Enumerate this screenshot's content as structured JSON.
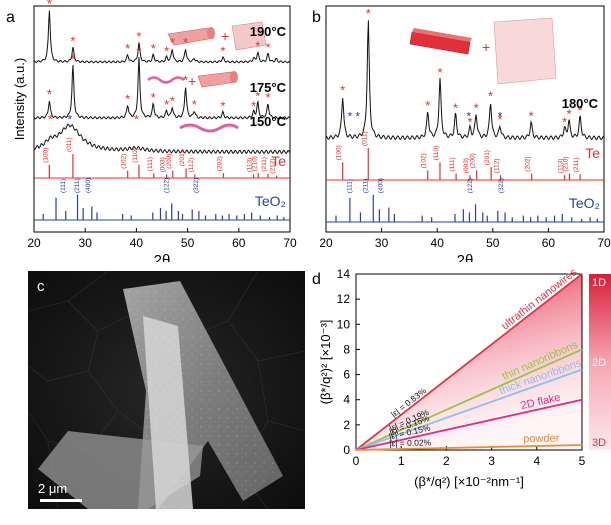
{
  "panel_labels": {
    "a": "a",
    "b": "b",
    "c": "c",
    "d": "d"
  },
  "chart_data": [
    {
      "type": "line",
      "panel": "a",
      "xlabel": "2θ",
      "ylabel": "Intensity (a.u.)",
      "xlim": [
        20,
        70
      ],
      "xticks": [
        20,
        30,
        40,
        50,
        60,
        70
      ],
      "traces": [
        {
          "name": "190°C",
          "peaks": [
            {
              "x": 23.0,
              "h": 0.9
            },
            {
              "x": 27.6,
              "h": 0.25
            },
            {
              "x": 38.3,
              "h": 0.12
            },
            {
              "x": 40.5,
              "h": 0.33
            },
            {
              "x": 43.3,
              "h": 0.12
            },
            {
              "x": 45.9,
              "h": 0.08
            },
            {
              "x": 47.0,
              "h": 0.22
            },
            {
              "x": 49.6,
              "h": 0.22
            },
            {
              "x": 51.3,
              "h": 0.06
            },
            {
              "x": 56.9,
              "h": 0.08
            },
            {
              "x": 62.9,
              "h": 0.06
            },
            {
              "x": 63.7,
              "h": 0.16
            },
            {
              "x": 65.7,
              "h": 0.14
            },
            {
              "x": 67.3,
              "h": 0.05
            }
          ]
        },
        {
          "name": "175°C",
          "peaks": [
            {
              "x": 23.0,
              "h": 0.25
            },
            {
              "x": 27.6,
              "h": 0.75
            },
            {
              "x": 38.3,
              "h": 0.18
            },
            {
              "x": 40.5,
              "h": 0.85
            },
            {
              "x": 43.3,
              "h": 0.2
            },
            {
              "x": 45.9,
              "h": 0.1
            },
            {
              "x": 47.0,
              "h": 0.15
            },
            {
              "x": 49.6,
              "h": 0.45
            },
            {
              "x": 51.3,
              "h": 0.1
            },
            {
              "x": 56.9,
              "h": 0.08
            },
            {
              "x": 62.9,
              "h": 0.08
            },
            {
              "x": 63.7,
              "h": 0.22
            },
            {
              "x": 65.7,
              "h": 0.2
            }
          ]
        },
        {
          "name": "150°C",
          "broad": [
            {
              "x": 27.0,
              "h": 0.5,
              "w": 2.6
            },
            {
              "x": 23.2,
              "h": 0.12,
              "w": 1.2
            },
            {
              "x": 40.0,
              "h": 0.06,
              "w": 2.0
            }
          ]
        }
      ],
      "references": [
        {
          "name": "Te",
          "color": "#e8302a",
          "lines": [
            {
              "x": 23.0,
              "h": 0.55,
              "hkl": "(100)"
            },
            {
              "x": 27.6,
              "h": 1.0,
              "hkl": "(011)"
            },
            {
              "x": 38.3,
              "h": 0.3,
              "hkl": "(102)"
            },
            {
              "x": 40.5,
              "h": 0.55,
              "hkl": "(110)"
            },
            {
              "x": 43.4,
              "h": 0.2,
              "hkl": "(111)"
            },
            {
              "x": 45.9,
              "h": 0.15,
              "hkl": "(003)"
            },
            {
              "x": 47.1,
              "h": 0.3,
              "hkl": "(200)"
            },
            {
              "x": 49.7,
              "h": 0.4,
              "hkl": "(201)"
            },
            {
              "x": 51.4,
              "h": 0.15,
              "hkl": "(112)"
            },
            {
              "x": 57.0,
              "h": 0.2,
              "hkl": "(202)"
            },
            {
              "x": 62.9,
              "h": 0.15,
              "hkl": "(113)"
            },
            {
              "x": 63.8,
              "h": 0.2,
              "hkl": "(210)"
            },
            {
              "x": 65.7,
              "h": 0.18,
              "hkl": "(211)"
            },
            {
              "x": 67.4,
              "h": 0.1,
              "hkl": "(212)"
            }
          ]
        },
        {
          "name": "TeO₂",
          "color": "#2a3fa0",
          "lines": [
            {
              "x": 21.8,
              "h": 0.2
            },
            {
              "x": 24.3,
              "h": 0.75
            },
            {
              "x": 26.2,
              "h": 0.3
            },
            {
              "x": 28.5,
              "h": 0.85
            },
            {
              "x": 29.6,
              "h": 0.4
            },
            {
              "x": 31.3,
              "h": 0.45
            },
            {
              "x": 32.3,
              "h": 0.25
            },
            {
              "x": 37.3,
              "h": 0.2
            },
            {
              "x": 39.0,
              "h": 0.15
            },
            {
              "x": 43.2,
              "h": 0.25
            },
            {
              "x": 44.7,
              "h": 0.4
            },
            {
              "x": 45.8,
              "h": 0.3
            },
            {
              "x": 46.9,
              "h": 0.55
            },
            {
              "x": 48.2,
              "h": 0.3
            },
            {
              "x": 49.0,
              "h": 0.2
            },
            {
              "x": 50.9,
              "h": 0.35
            },
            {
              "x": 52.2,
              "h": 0.3
            },
            {
              "x": 53.5,
              "h": 0.15
            },
            {
              "x": 55.5,
              "h": 0.2
            },
            {
              "x": 56.8,
              "h": 0.15
            },
            {
              "x": 58.1,
              "h": 0.2
            },
            {
              "x": 59.6,
              "h": 0.15
            },
            {
              "x": 61.1,
              "h": 0.2
            },
            {
              "x": 62.5,
              "h": 0.25
            },
            {
              "x": 64.2,
              "h": 0.15
            },
            {
              "x": 66.0,
              "h": 0.1
            },
            {
              "x": 67.5,
              "h": 0.15
            },
            {
              "x": 68.8,
              "h": 0.1
            }
          ],
          "labels": [
            {
              "x": 26.1,
              "text": "(111)"
            },
            {
              "x": 28.8,
              "text": "(211)"
            },
            {
              "x": 30.9,
              "text": "(400)"
            },
            {
              "x": 46.3,
              "text": "(122)"
            },
            {
              "x": 52.0,
              "text": "(322)"
            }
          ]
        }
      ]
    },
    {
      "type": "line",
      "panel": "b",
      "xlabel": "2θ",
      "xlim": [
        20,
        70
      ],
      "xticks": [
        20,
        30,
        40,
        50,
        60,
        70
      ],
      "traces": [
        {
          "name": "180°C",
          "peaks": [
            {
              "x": 23.0,
              "h": 0.35
            },
            {
              "x": 27.6,
              "h": 1.0
            },
            {
              "x": 38.3,
              "h": 0.22
            },
            {
              "x": 40.5,
              "h": 0.5
            },
            {
              "x": 43.3,
              "h": 0.2
            },
            {
              "x": 45.9,
              "h": 0.08
            },
            {
              "x": 47.0,
              "h": 0.2
            },
            {
              "x": 49.6,
              "h": 0.3
            },
            {
              "x": 51.3,
              "h": 0.1
            },
            {
              "x": 56.9,
              "h": 0.13
            },
            {
              "x": 62.9,
              "h": 0.08
            },
            {
              "x": 63.7,
              "h": 0.15
            },
            {
              "x": 65.7,
              "h": 0.18
            }
          ],
          "blue_marks": [
            24.3,
            25.7,
            45.7,
            51.3
          ]
        }
      ],
      "references": [
        {
          "name": "Te",
          "color": "#e8302a",
          "lines": [
            {
              "x": 23.0,
              "h": 0.55,
              "hkl": "(100)"
            },
            {
              "x": 27.6,
              "h": 1.0,
              "hkl": "(011)"
            },
            {
              "x": 38.3,
              "h": 0.3,
              "hkl": "(102)"
            },
            {
              "x": 40.5,
              "h": 0.55,
              "hkl": "(110)"
            },
            {
              "x": 43.4,
              "h": 0.2,
              "hkl": "(111)"
            },
            {
              "x": 45.9,
              "h": 0.15,
              "hkl": "(003)"
            },
            {
              "x": 47.1,
              "h": 0.3,
              "hkl": "(200)"
            },
            {
              "x": 49.7,
              "h": 0.4,
              "hkl": "(201)"
            },
            {
              "x": 51.4,
              "h": 0.15,
              "hkl": "(112)"
            },
            {
              "x": 57.0,
              "h": 0.2,
              "hkl": "(202)"
            },
            {
              "x": 62.9,
              "h": 0.15,
              "hkl": "(113)"
            },
            {
              "x": 63.8,
              "h": 0.2,
              "hkl": "(210)"
            },
            {
              "x": 65.7,
              "h": 0.18,
              "hkl": "(211)"
            }
          ]
        },
        {
          "name": "TeO₂",
          "color": "#2a3fa0",
          "lines": [
            {
              "x": 21.8,
              "h": 0.2
            },
            {
              "x": 24.3,
              "h": 0.75
            },
            {
              "x": 26.2,
              "h": 0.3
            },
            {
              "x": 28.5,
              "h": 0.85
            },
            {
              "x": 29.6,
              "h": 0.4
            },
            {
              "x": 31.3,
              "h": 0.45
            },
            {
              "x": 32.3,
              "h": 0.25
            },
            {
              "x": 37.3,
              "h": 0.2
            },
            {
              "x": 39.0,
              "h": 0.15
            },
            {
              "x": 43.2,
              "h": 0.25
            },
            {
              "x": 44.7,
              "h": 0.4
            },
            {
              "x": 45.8,
              "h": 0.3
            },
            {
              "x": 46.9,
              "h": 0.55
            },
            {
              "x": 48.2,
              "h": 0.3
            },
            {
              "x": 49.0,
              "h": 0.2
            },
            {
              "x": 50.9,
              "h": 0.35
            },
            {
              "x": 52.2,
              "h": 0.3
            },
            {
              "x": 53.5,
              "h": 0.15
            },
            {
              "x": 55.5,
              "h": 0.2
            },
            {
              "x": 56.8,
              "h": 0.15
            },
            {
              "x": 58.1,
              "h": 0.2
            },
            {
              "x": 59.6,
              "h": 0.15
            },
            {
              "x": 61.1,
              "h": 0.2
            },
            {
              "x": 62.5,
              "h": 0.25
            },
            {
              "x": 64.2,
              "h": 0.15
            },
            {
              "x": 66.0,
              "h": 0.1
            },
            {
              "x": 67.5,
              "h": 0.15
            },
            {
              "x": 68.8,
              "h": 0.1
            }
          ],
          "labels": [
            {
              "x": 24.6,
              "text": "(111)"
            },
            {
              "x": 27.5,
              "text": "(211)"
            },
            {
              "x": 30.2,
              "text": "(400)"
            },
            {
              "x": 46.3,
              "text": "(122)"
            },
            {
              "x": 51.8,
              "text": "(322)"
            }
          ]
        }
      ]
    },
    {
      "type": "line",
      "panel": "d",
      "xlabel": "(β*/q²)  [×10⁻²nm⁻¹]",
      "ylabel": "(β*/q²)²  [×10⁻³]",
      "xlim": [
        0,
        5
      ],
      "ylim": [
        0,
        14
      ],
      "xticks": [
        0,
        1,
        2,
        3,
        4,
        5
      ],
      "yticks": [
        0,
        2,
        4,
        6,
        8,
        10,
        12,
        14
      ],
      "gradient_scale": [
        "1D",
        "2D",
        "3D"
      ],
      "series": [
        {
          "name": "ultrathin nanowires",
          "strain": "|ε| = 0.83%",
          "x": [
            0,
            5
          ],
          "y": [
            0,
            14.0
          ],
          "color": "#e8304a"
        },
        {
          "name": "thin nanoribbons",
          "strain": "|ε| = 0.19%",
          "x": [
            0,
            5
          ],
          "y": [
            0,
            8.0
          ],
          "color": "#9cc24a"
        },
        {
          "name": "thick nanoribbons",
          "strain": "|ε| = 0.15%",
          "x": [
            0,
            5
          ],
          "y": [
            0,
            6.4
          ],
          "color": "#8fbfe8"
        },
        {
          "name": "2D flake",
          "strain": "|ε| = 0.15%",
          "x": [
            0,
            5
          ],
          "y": [
            0,
            4.0
          ],
          "color": "#d8308a"
        },
        {
          "name": "powder",
          "strain": "|ε| = 0.02%",
          "x": [
            0,
            5
          ],
          "y": [
            0,
            0.4
          ],
          "color": "#e89030"
        }
      ]
    }
  ],
  "image_c": {
    "scale_bar_label": "2 μm"
  }
}
